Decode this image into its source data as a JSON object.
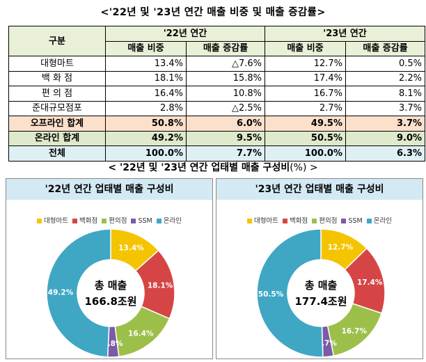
{
  "table_title": "<'22년 및 '23년 연간 매출 비중 및 매출 증감률>",
  "table": {
    "header_group": "구분",
    "year1": "'22년 연간",
    "year2": "'23년 연간",
    "col_share": "매출 비중",
    "col_growth": "매출 증감률",
    "rows": [
      {
        "label": "대형마트",
        "s22": "13.4%",
        "g22": "△7.6%",
        "s23": "12.7%",
        "g23": "0.5%"
      },
      {
        "label": "백 화 점",
        "s22": "18.1%",
        "g22": "15.8%",
        "s23": "17.4%",
        "g23": "2.2%"
      },
      {
        "label": "편 의 점",
        "s22": "16.4%",
        "g22": "10.8%",
        "s23": "16.7%",
        "g23": "8.1%"
      },
      {
        "label": "준대규모점포",
        "s22": "2.8%",
        "g22": "△2.5%",
        "s23": "2.7%",
        "g23": "3.7%"
      },
      {
        "label": "오프라인 합계",
        "s22": "50.8%",
        "g22": "6.0%",
        "s23": "49.5%",
        "g23": "3.7%"
      },
      {
        "label": "온라인 합계",
        "s22": "49.2%",
        "g22": "9.5%",
        "s23": "50.5%",
        "g23": "9.0%"
      },
      {
        "label": "전체",
        "s22": "100.0%",
        "g22": "7.7%",
        "s23": "100.0%",
        "g23": "6.3%"
      }
    ]
  },
  "chart_section_title": "< '22년 및 '23년 연간 업태별 매출 구성비",
  "chart_section_unit": "(%) >",
  "colors": {
    "대형마트": "#f5c400",
    "백화점": "#d64545",
    "편의점": "#9cbf4a",
    "SSM": "#7b5aa6",
    "온라인": "#3fa7c4"
  },
  "chart_data": [
    {
      "type": "pie",
      "title": "'22년 연간 업태별 매출 구성비",
      "categories": [
        "대형마트",
        "백화점",
        "편의점",
        "SSM",
        "온라인"
      ],
      "values": [
        13.4,
        18.1,
        16.4,
        2.8,
        49.2
      ],
      "labels": [
        "13.4%",
        "18.1%",
        "16.4%",
        "2.8%",
        "49.2%"
      ],
      "center_line1": "총 매출",
      "center_line2": "166.8조원",
      "legend_position": "top"
    },
    {
      "type": "pie",
      "title": "'23년 연간 업태별 매출 구성비",
      "categories": [
        "대형마트",
        "백화점",
        "편의점",
        "SSM",
        "온라인"
      ],
      "values": [
        12.7,
        17.4,
        16.7,
        2.7,
        50.5
      ],
      "labels": [
        "12.7%",
        "17.4%",
        "16.7%",
        "2.7%",
        "50.5%"
      ],
      "center_line1": "총 매출",
      "center_line2": "177.4조원",
      "legend_position": "top"
    }
  ]
}
